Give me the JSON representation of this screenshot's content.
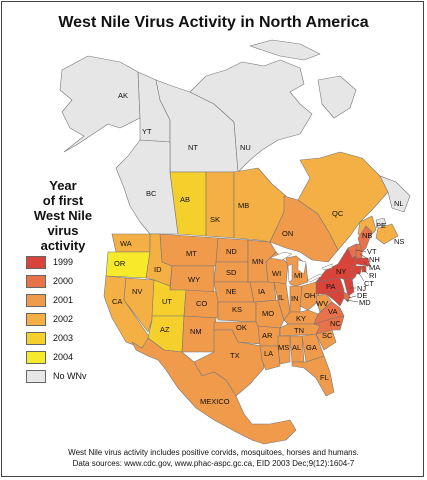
{
  "title": "West Nile Virus Activity in North America",
  "legend": {
    "title_lines": [
      "Year",
      "of first",
      "West Nile",
      "virus",
      "activity"
    ],
    "items": [
      {
        "label": "1999",
        "color": "#d9443a"
      },
      {
        "label": "2000",
        "color": "#e8734a"
      },
      {
        "label": "2001",
        "color": "#f09a4c"
      },
      {
        "label": "2002",
        "color": "#f4b045"
      },
      {
        "label": "2003",
        "color": "#f5cf2c"
      },
      {
        "label": "2004",
        "color": "#f6ea2a"
      },
      {
        "label": "No WNv",
        "color": "#e6e6e6"
      }
    ]
  },
  "region_labels": {
    "AK": "AK",
    "YT": "YT",
    "NT": "NT",
    "NU": "NU",
    "BC": "BC",
    "AB": "AB",
    "SK": "SK",
    "MB": "MB",
    "ON": "ON",
    "QC": "QC",
    "NL": "NL",
    "NB": "NB",
    "PE": "PE",
    "NS": "NS",
    "WA": "WA",
    "OR": "OR",
    "CA": "CA",
    "NV": "NV",
    "ID": "ID",
    "MT": "MT",
    "WY": "WY",
    "UT": "UT",
    "AZ": "AZ",
    "CO": "CO",
    "NM": "NM",
    "ND": "ND",
    "SD": "SD",
    "NE": "NE",
    "KS": "KS",
    "OK": "OK",
    "TX": "TX",
    "MN": "MN",
    "IA": "IA",
    "MO": "MO",
    "AR": "AR",
    "LA": "LA",
    "WI": "WI",
    "IL": "IL",
    "MI": "MI",
    "IN": "IN",
    "OH": "OH",
    "KY": "KY",
    "TN": "TN",
    "MS": "MS",
    "AL": "AL",
    "GA": "GA",
    "FL": "FL",
    "SC": "SC",
    "NC": "NC",
    "VA": "VA",
    "WV": "WV",
    "PA": "PA",
    "NY": "NY",
    "VT": "VT",
    "NH": "NH",
    "MA": "MA",
    "RI": "RI",
    "CT": "CT",
    "NJ": "NJ",
    "DE": "DE",
    "MD": "MD",
    "MEXICO": "MEXICO"
  },
  "footer": {
    "line1": "West Nile virus activity includes positive corvids, mosquitoes, horses and humans.",
    "line2": "Data sources: www.cdc.gov, www.phac-aspc.gc.ca, EID 2003 Dec;9(12):1604-7"
  }
}
